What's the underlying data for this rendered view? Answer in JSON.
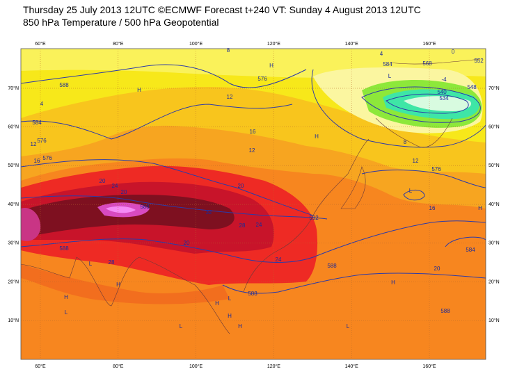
{
  "header": {
    "title": "Thursday 25 July 2013 12UTC ©ECMWF Forecast t+240 VT: Sunday 4 August 2013 12UTC",
    "subtitle": "850 hPa Temperature / 500 hPa Geopotential"
  },
  "map": {
    "longitude_labels": [
      "60°E",
      "80°E",
      "100°E",
      "120°E",
      "140°E",
      "160°E"
    ],
    "latitude_labels": [
      "70°N",
      "60°N",
      "50°N",
      "40°N",
      "30°N",
      "20°N",
      "10°N"
    ],
    "contour_labels": [
      "588",
      "4",
      "584",
      "12",
      "576",
      "16",
      "576",
      "8",
      "576",
      "12",
      "16",
      "12",
      "4",
      "0",
      "584",
      "-4",
      "552",
      "568",
      "548",
      "540",
      "534",
      "8",
      "12",
      "576",
      "20",
      "24",
      "20",
      "588",
      "20",
      "32",
      "28",
      "24",
      "592",
      "16",
      "588",
      "20",
      "28",
      "24",
      "588",
      "20",
      "584",
      "588",
      "588"
    ],
    "pressure_centres": [
      "H",
      "H",
      "L",
      "H",
      "L",
      "L",
      "H",
      "L",
      "H",
      "L",
      "H",
      "H",
      "L",
      "H",
      "L",
      "H",
      "H"
    ]
  }
}
